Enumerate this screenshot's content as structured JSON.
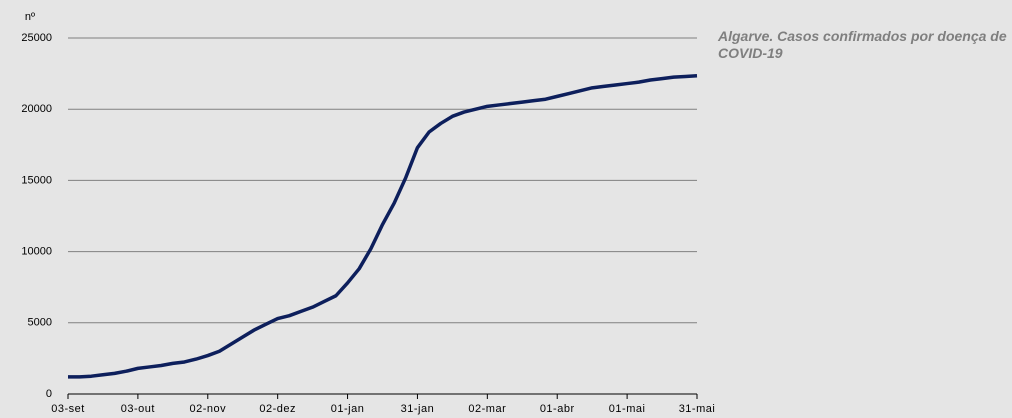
{
  "chart_data": {
    "type": "line",
    "title": "Algarve. Casos confirmados por doença de COVID-19",
    "y_label": "nº",
    "categories": [
      "03-set",
      null,
      null,
      null,
      null,
      null,
      "03-out",
      null,
      null,
      null,
      null,
      null,
      "02-nov",
      null,
      null,
      null,
      null,
      null,
      "02-dez",
      null,
      null,
      null,
      null,
      null,
      "01-jan",
      null,
      null,
      null,
      null,
      null,
      "31-jan",
      null,
      null,
      null,
      null,
      null,
      "02-mar",
      null,
      null,
      null,
      null,
      null,
      "01-abr",
      null,
      null,
      null,
      null,
      null,
      "01-mai",
      null,
      null,
      null,
      null,
      null,
      "31-mai"
    ],
    "series": [
      {
        "name": "Casos confirmados",
        "color": "#0d1f5c",
        "values": [
          1200,
          1200,
          1250,
          1350,
          1450,
          1600,
          1800,
          1900,
          2000,
          2150,
          2250,
          2450,
          2700,
          3000,
          3500,
          4000,
          4500,
          4900,
          5300,
          5500,
          5800,
          6100,
          6500,
          6900,
          7800,
          8800,
          10200,
          11900,
          13400,
          15200,
          17300,
          18400,
          19000,
          19500,
          19800,
          20000,
          20200,
          20300,
          20400,
          20500,
          20600,
          20700,
          20900,
          21100,
          21300,
          21500,
          21600,
          21700,
          21800,
          21900,
          22050,
          22150,
          22250,
          22300,
          22350
        ]
      }
    ],
    "ylim": [
      0,
      25000
    ],
    "yticks": [
      0,
      5000,
      10000,
      15000,
      20000,
      25000
    ],
    "grid": true
  }
}
